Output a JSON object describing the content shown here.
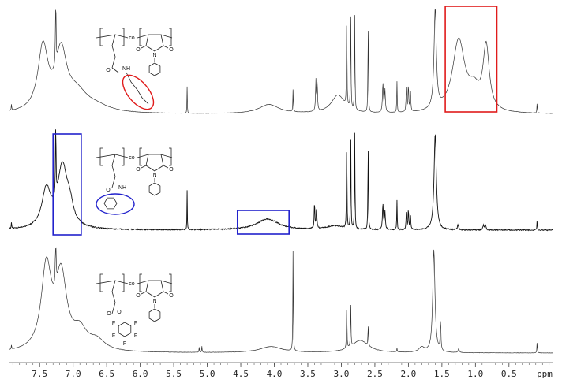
{
  "chart_data": {
    "type": "line",
    "xlabel": "ppm",
    "xlim": [
      7.95,
      -0.15
    ],
    "x_reversed": true,
    "x_ticks": [
      7.5,
      7.0,
      6.5,
      6.0,
      5.5,
      5.0,
      4.5,
      4.0,
      3.5,
      3.0,
      2.5,
      2.0,
      1.5,
      1.0,
      0.5
    ],
    "x_tick_labels": [
      "7.5",
      "7.0",
      "6.5",
      "6.0",
      "5.5",
      "5.0",
      "4.5",
      "4.0",
      "3.5",
      "3.0",
      "2.5",
      "2.0",
      "1.5",
      "1.0",
      "0.5"
    ],
    "grid": false,
    "stacked_spectra": 3,
    "spectra": [
      {
        "peaks": [
          {
            "ppm": 7.92,
            "height": 0.06,
            "width": 0.004
          },
          {
            "ppm": 7.45,
            "height": 0.62,
            "width": 0.09
          },
          {
            "ppm": 7.26,
            "height": 1.0,
            "width": 0.004
          },
          {
            "ppm": 7.18,
            "height": 0.55,
            "width": 0.1
          },
          {
            "ppm": 6.95,
            "height": 0.18,
            "width": 0.2
          },
          {
            "ppm": 6.65,
            "height": 0.05,
            "width": 0.25
          },
          {
            "ppm": 5.3,
            "height": 0.26,
            "width": 0.003
          },
          {
            "ppm": 4.08,
            "height": 0.09,
            "width": 0.18
          },
          {
            "ppm": 3.72,
            "height": 0.22,
            "width": 0.004
          },
          {
            "ppm": 3.38,
            "height": 0.3,
            "width": 0.006
          },
          {
            "ppm": 3.36,
            "height": 0.28,
            "width": 0.006
          },
          {
            "ppm": 3.05,
            "height": 0.18,
            "width": 0.12
          },
          {
            "ppm": 2.92,
            "height": 1.0,
            "width": 0.004
          },
          {
            "ppm": 2.86,
            "height": 1.0,
            "width": 0.004
          },
          {
            "ppm": 2.8,
            "height": 0.95,
            "width": 0.004
          },
          {
            "ppm": 2.6,
            "height": 0.95,
            "width": 0.004
          },
          {
            "ppm": 2.38,
            "height": 0.28,
            "width": 0.008
          },
          {
            "ppm": 2.35,
            "height": 0.22,
            "width": 0.008
          },
          {
            "ppm": 2.17,
            "height": 0.3,
            "width": 0.004
          },
          {
            "ppm": 2.03,
            "height": 0.24,
            "width": 0.006
          },
          {
            "ppm": 2.0,
            "height": 0.26,
            "width": 0.006
          },
          {
            "ppm": 1.97,
            "height": 0.22,
            "width": 0.006
          },
          {
            "ppm": 1.6,
            "height": 0.98,
            "width": 0.02
          },
          {
            "ppm": 1.25,
            "height": 0.7,
            "width": 0.11
          },
          {
            "ppm": 1.02,
            "height": 0.18,
            "width": 0.1
          },
          {
            "ppm": 0.84,
            "height": 0.62,
            "width": 0.055
          },
          {
            "ppm": 0.08,
            "height": 0.1,
            "width": 0.004
          }
        ]
      },
      {
        "peaks": [
          {
            "ppm": 7.92,
            "height": 0.06,
            "width": 0.004
          },
          {
            "ppm": 7.4,
            "height": 0.38,
            "width": 0.08
          },
          {
            "ppm": 7.26,
            "height": 1.0,
            "width": 0.004
          },
          {
            "ppm": 7.16,
            "height": 0.62,
            "width": 0.09
          },
          {
            "ppm": 7.05,
            "height": 0.16,
            "width": 0.06
          },
          {
            "ppm": 5.3,
            "height": 0.4,
            "width": 0.003
          },
          {
            "ppm": 4.1,
            "height": 0.11,
            "width": 0.2
          },
          {
            "ppm": 3.4,
            "height": 0.26,
            "width": 0.006
          },
          {
            "ppm": 3.37,
            "height": 0.22,
            "width": 0.006
          },
          {
            "ppm": 3.1,
            "height": 0.04,
            "width": 0.15
          },
          {
            "ppm": 2.92,
            "height": 1.0,
            "width": 0.004
          },
          {
            "ppm": 2.86,
            "height": 1.0,
            "width": 0.004
          },
          {
            "ppm": 2.8,
            "height": 1.0,
            "width": 0.004
          },
          {
            "ppm": 2.6,
            "height": 0.95,
            "width": 0.004
          },
          {
            "ppm": 2.38,
            "height": 0.26,
            "width": 0.008
          },
          {
            "ppm": 2.35,
            "height": 0.18,
            "width": 0.008
          },
          {
            "ppm": 2.17,
            "height": 0.3,
            "width": 0.004
          },
          {
            "ppm": 2.03,
            "height": 0.18,
            "width": 0.006
          },
          {
            "ppm": 2.0,
            "height": 0.2,
            "width": 0.006
          },
          {
            "ppm": 1.97,
            "height": 0.16,
            "width": 0.006
          },
          {
            "ppm": 1.6,
            "height": 0.98,
            "width": 0.02
          },
          {
            "ppm": 1.26,
            "height": 0.05,
            "width": 0.01
          },
          {
            "ppm": 0.88,
            "height": 0.05,
            "width": 0.01
          },
          {
            "ppm": 0.85,
            "height": 0.05,
            "width": 0.01
          },
          {
            "ppm": 0.08,
            "height": 0.1,
            "width": 0.004
          }
        ]
      },
      {
        "peaks": [
          {
            "ppm": 7.92,
            "height": 0.04,
            "width": 0.004
          },
          {
            "ppm": 7.4,
            "height": 0.8,
            "width": 0.09
          },
          {
            "ppm": 7.26,
            "height": 1.0,
            "width": 0.004
          },
          {
            "ppm": 7.18,
            "height": 0.72,
            "width": 0.1
          },
          {
            "ppm": 6.9,
            "height": 0.18,
            "width": 0.12
          },
          {
            "ppm": 6.65,
            "height": 0.1,
            "width": 0.15
          },
          {
            "ppm": 5.12,
            "height": 0.05,
            "width": 0.004
          },
          {
            "ppm": 5.08,
            "height": 0.06,
            "width": 0.004
          },
          {
            "ppm": 4.05,
            "height": 0.06,
            "width": 0.2
          },
          {
            "ppm": 3.72,
            "height": 1.0,
            "width": 0.004
          },
          {
            "ppm": 2.92,
            "height": 0.48,
            "width": 0.004
          },
          {
            "ppm": 2.86,
            "height": 0.45,
            "width": 0.004
          },
          {
            "ppm": 2.72,
            "height": 0.12,
            "width": 0.15
          },
          {
            "ppm": 2.6,
            "height": 0.22,
            "width": 0.004
          },
          {
            "ppm": 2.17,
            "height": 0.04,
            "width": 0.004
          },
          {
            "ppm": 1.8,
            "height": 0.05,
            "width": 0.05
          },
          {
            "ppm": 1.62,
            "height": 1.0,
            "width": 0.02
          },
          {
            "ppm": 1.52,
            "height": 0.3,
            "width": 0.006
          },
          {
            "ppm": 1.25,
            "height": 0.04,
            "width": 0.01
          },
          {
            "ppm": 0.08,
            "height": 0.11,
            "width": 0.004
          }
        ]
      }
    ],
    "highlight_boxes": [
      {
        "spectrum": 0,
        "color": "#e01b1b",
        "ppm_range": [
          1.45,
          0.68
        ]
      },
      {
        "spectrum": 1,
        "color": "#2222cc",
        "ppm_range": [
          7.3,
          6.88
        ]
      },
      {
        "spectrum": 1,
        "color": "#2222cc",
        "ppm_range": [
          4.55,
          3.78
        ]
      }
    ],
    "structure_labels": {
      "co": "co",
      "amide_nh": "NH",
      "ring_n": "N",
      "carbonyl_o": "O",
      "fluoro": "F"
    }
  }
}
